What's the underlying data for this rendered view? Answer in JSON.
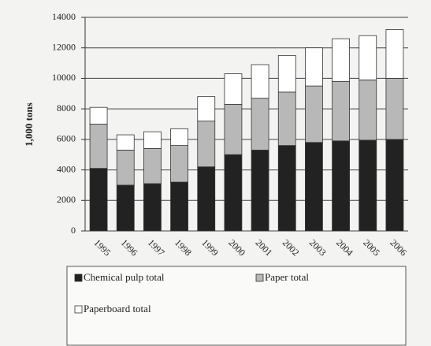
{
  "chart_data": {
    "type": "stacked_bar",
    "y_label": "1,000 tons",
    "categories": [
      "1995",
      "1996",
      "1997",
      "1998",
      "1999",
      "2000",
      "2001",
      "2002",
      "2003",
      "2004",
      "2005",
      "2006"
    ],
    "series": [
      {
        "name": "Chemical pulp total",
        "color": "#222222",
        "values": [
          4100,
          3000,
          3100,
          3200,
          4200,
          5000,
          5300,
          5600,
          5800,
          5900,
          5950,
          6000
        ]
      },
      {
        "name": "Paper total",
        "color": "#b8b8b8",
        "values": [
          2900,
          2300,
          2300,
          2400,
          3000,
          3300,
          3400,
          3500,
          3700,
          3900,
          3950,
          4000
        ]
      },
      {
        "name": "Paperboard total",
        "color": "#ffffff",
        "values": [
          1100,
          1000,
          1100,
          1100,
          1600,
          2000,
          2200,
          2400,
          2500,
          2800,
          2900,
          3200
        ]
      }
    ],
    "ylim": [
      0,
      14000
    ],
    "yticks": [
      0,
      2000,
      4000,
      6000,
      8000,
      10000,
      12000,
      14000
    ],
    "grid": true
  }
}
